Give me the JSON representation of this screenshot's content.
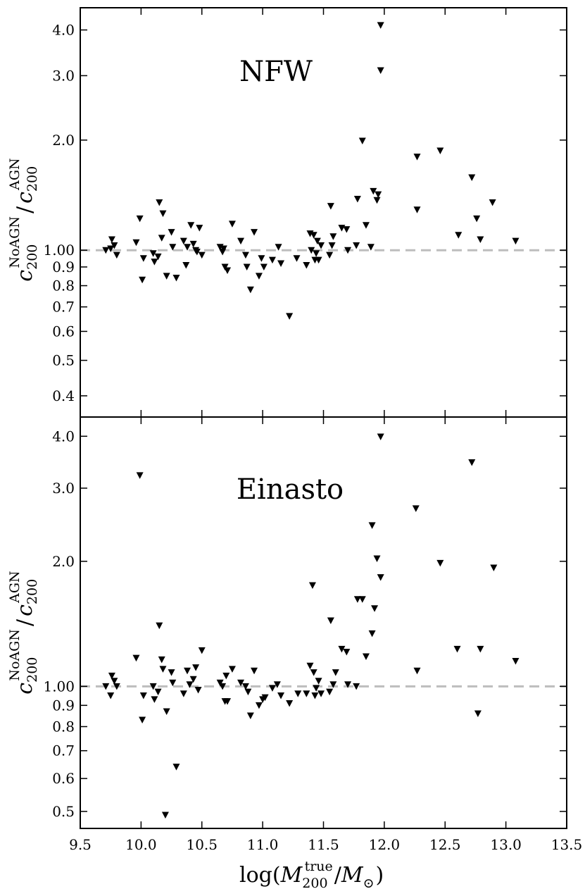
{
  "chart_data": [
    {
      "type": "scatter",
      "title": "NFW",
      "x_axis_label": {
        "pre": "log(",
        "var": "M",
        "sub": "200",
        "sup": "true",
        "slash": "/",
        "sun": "M",
        "sun_sub": "⊙",
        "post": ")"
      },
      "y_axis_label": {
        "num": "c",
        "num_sub": "200",
        "num_sup": "NoAGN",
        "slash": "/",
        "den": "c",
        "den_sub": "200",
        "den_sup": "AGN"
      },
      "xlim": [
        9.5,
        13.5
      ],
      "ylim": [
        0.35,
        4.6
      ],
      "yscale": "log",
      "x_ticks": [
        9.5,
        10.0,
        10.5,
        11.0,
        11.5,
        12.0,
        12.5,
        13.0,
        13.5
      ],
      "x_tick_labels": [
        "9.5",
        "10.0",
        "10.5",
        "11.0",
        "11.5",
        "12.0",
        "12.5",
        "13.0",
        "13.5"
      ],
      "y_ticks": [
        0.4,
        0.5,
        0.6,
        0.7,
        0.8,
        0.9,
        1.0,
        2.0,
        3.0,
        4.0
      ],
      "y_tick_labels": [
        "0.4",
        "0.5",
        "0.6",
        "0.7",
        "0.8",
        "0.9",
        "1.00",
        "2.0",
        "3.0",
        "4.0"
      ],
      "reference_line": 1.0,
      "marker": "triangle_down",
      "points": [
        [
          9.71,
          1.0
        ],
        [
          9.75,
          1.01
        ],
        [
          9.76,
          1.07
        ],
        [
          9.78,
          1.03
        ],
        [
          9.8,
          0.97
        ],
        [
          9.96,
          1.05
        ],
        [
          9.99,
          1.22
        ],
        [
          10.01,
          0.83
        ],
        [
          10.02,
          0.95
        ],
        [
          10.1,
          0.98
        ],
        [
          10.11,
          0.93
        ],
        [
          10.14,
          0.96
        ],
        [
          10.15,
          1.35
        ],
        [
          10.17,
          1.08
        ],
        [
          10.18,
          1.26
        ],
        [
          10.21,
          0.85
        ],
        [
          10.25,
          1.12
        ],
        [
          10.26,
          1.02
        ],
        [
          10.29,
          0.84
        ],
        [
          10.35,
          1.06
        ],
        [
          10.37,
          0.91
        ],
        [
          10.38,
          1.02
        ],
        [
          10.41,
          1.17
        ],
        [
          10.43,
          1.04
        ],
        [
          10.45,
          1.0
        ],
        [
          10.46,
          0.99
        ],
        [
          10.48,
          1.15
        ],
        [
          10.5,
          0.97
        ],
        [
          10.65,
          1.02
        ],
        [
          10.67,
          0.99
        ],
        [
          10.68,
          1.01
        ],
        [
          10.69,
          0.9
        ],
        [
          10.71,
          0.88
        ],
        [
          10.75,
          1.18
        ],
        [
          10.82,
          1.06
        ],
        [
          10.86,
          0.97
        ],
        [
          10.87,
          0.9
        ],
        [
          10.9,
          0.78
        ],
        [
          10.93,
          1.12
        ],
        [
          10.97,
          0.85
        ],
        [
          10.99,
          0.95
        ],
        [
          11.01,
          0.9
        ],
        [
          11.08,
          0.94
        ],
        [
          11.13,
          1.02
        ],
        [
          11.15,
          0.92
        ],
        [
          11.22,
          0.66
        ],
        [
          11.28,
          0.95
        ],
        [
          11.36,
          0.91
        ],
        [
          11.39,
          1.11
        ],
        [
          11.4,
          1.0
        ],
        [
          11.42,
          1.1
        ],
        [
          11.43,
          0.94
        ],
        [
          11.44,
          0.98
        ],
        [
          11.45,
          1.06
        ],
        [
          11.46,
          0.94
        ],
        [
          11.48,
          1.03
        ],
        [
          11.55,
          0.97
        ],
        [
          11.56,
          1.32
        ],
        [
          11.57,
          1.03
        ],
        [
          11.58,
          1.09
        ],
        [
          11.65,
          1.15
        ],
        [
          11.69,
          1.14
        ],
        [
          11.7,
          1.0
        ],
        [
          11.77,
          1.03
        ],
        [
          11.78,
          1.38
        ],
        [
          11.82,
          1.99
        ],
        [
          11.85,
          1.17
        ],
        [
          11.89,
          1.02
        ],
        [
          11.91,
          1.45
        ],
        [
          11.94,
          1.37
        ],
        [
          11.95,
          1.42
        ],
        [
          11.97,
          4.12
        ],
        [
          11.97,
          3.1
        ],
        [
          12.27,
          1.8
        ],
        [
          12.27,
          1.29
        ],
        [
          12.46,
          1.87
        ],
        [
          12.61,
          1.1
        ],
        [
          12.72,
          1.58
        ],
        [
          12.76,
          1.22
        ],
        [
          12.79,
          1.07
        ],
        [
          12.89,
          1.35
        ],
        [
          13.08,
          1.06
        ]
      ]
    },
    {
      "type": "scatter",
      "title": "Einasto",
      "x_axis_label": {
        "pre": "log(",
        "var": "M",
        "sub": "200",
        "sup": "true",
        "slash": "/",
        "sun": "M",
        "sun_sub": "⊙",
        "post": ")"
      },
      "y_axis_label": {
        "num": "c",
        "num_sub": "200",
        "num_sup": "NoAGN",
        "slash": "/",
        "den": "c",
        "den_sub": "200",
        "den_sup": "AGN"
      },
      "xlim": [
        9.5,
        13.5
      ],
      "ylim": [
        0.455,
        4.45
      ],
      "yscale": "log",
      "x_ticks": [
        9.5,
        10.0,
        10.5,
        11.0,
        11.5,
        12.0,
        12.5,
        13.0,
        13.5
      ],
      "x_tick_labels": [
        "9.5",
        "10.0",
        "10.5",
        "11.0",
        "11.5",
        "12.0",
        "12.5",
        "13.0",
        "13.5"
      ],
      "y_ticks": [
        0.5,
        0.6,
        0.7,
        0.8,
        0.9,
        1.0,
        2.0,
        3.0,
        4.0
      ],
      "y_tick_labels": [
        "0.5",
        "0.6",
        "0.7",
        "0.8",
        "0.9",
        "1.00",
        "2.0",
        "3.0",
        "4.0"
      ],
      "reference_line": 1.0,
      "marker": "triangle_down",
      "points": [
        [
          9.71,
          1.0
        ],
        [
          9.75,
          0.95
        ],
        [
          9.76,
          1.06
        ],
        [
          9.78,
          1.03
        ],
        [
          9.8,
          1.0
        ],
        [
          9.96,
          1.17
        ],
        [
          9.99,
          3.22
        ],
        [
          10.01,
          0.83
        ],
        [
          10.02,
          0.95
        ],
        [
          10.1,
          1.0
        ],
        [
          10.11,
          0.93
        ],
        [
          10.14,
          0.97
        ],
        [
          10.15,
          1.4
        ],
        [
          10.17,
          1.16
        ],
        [
          10.18,
          1.1
        ],
        [
          10.2,
          0.49
        ],
        [
          10.21,
          0.87
        ],
        [
          10.25,
          1.08
        ],
        [
          10.26,
          1.02
        ],
        [
          10.29,
          0.64
        ],
        [
          10.35,
          0.96
        ],
        [
          10.38,
          1.09
        ],
        [
          10.4,
          1.01
        ],
        [
          10.43,
          1.04
        ],
        [
          10.45,
          1.11
        ],
        [
          10.47,
          0.98
        ],
        [
          10.5,
          1.22
        ],
        [
          10.65,
          1.02
        ],
        [
          10.67,
          1.0
        ],
        [
          10.69,
          0.92
        ],
        [
          10.7,
          1.06
        ],
        [
          10.71,
          0.92
        ],
        [
          10.75,
          1.1
        ],
        [
          10.82,
          1.02
        ],
        [
          10.86,
          1.0
        ],
        [
          10.88,
          0.97
        ],
        [
          10.9,
          0.85
        ],
        [
          10.93,
          1.09
        ],
        [
          10.97,
          0.9
        ],
        [
          11.0,
          0.93
        ],
        [
          11.02,
          0.94
        ],
        [
          11.08,
          0.99
        ],
        [
          11.12,
          1.01
        ],
        [
          11.15,
          0.95
        ],
        [
          11.22,
          0.91
        ],
        [
          11.29,
          0.96
        ],
        [
          11.36,
          0.96
        ],
        [
          11.39,
          1.12
        ],
        [
          11.41,
          1.75
        ],
        [
          11.42,
          1.08
        ],
        [
          11.43,
          0.95
        ],
        [
          11.44,
          0.99
        ],
        [
          11.46,
          1.03
        ],
        [
          11.48,
          0.96
        ],
        [
          11.55,
          0.97
        ],
        [
          11.56,
          1.44
        ],
        [
          11.58,
          1.01
        ],
        [
          11.6,
          1.08
        ],
        [
          11.65,
          1.23
        ],
        [
          11.69,
          1.21
        ],
        [
          11.7,
          1.01
        ],
        [
          11.77,
          1.0
        ],
        [
          11.78,
          1.62
        ],
        [
          11.82,
          1.62
        ],
        [
          11.85,
          1.18
        ],
        [
          11.9,
          2.44
        ],
        [
          11.9,
          1.34
        ],
        [
          11.92,
          1.54
        ],
        [
          11.94,
          2.03
        ],
        [
          11.97,
          1.83
        ],
        [
          11.97,
          3.99
        ],
        [
          12.26,
          2.68
        ],
        [
          12.27,
          1.09
        ],
        [
          12.46,
          1.98
        ],
        [
          12.6,
          1.23
        ],
        [
          12.72,
          3.46
        ],
        [
          12.77,
          0.86
        ],
        [
          12.79,
          1.23
        ],
        [
          12.9,
          1.93
        ],
        [
          13.08,
          1.15
        ]
      ]
    }
  ]
}
